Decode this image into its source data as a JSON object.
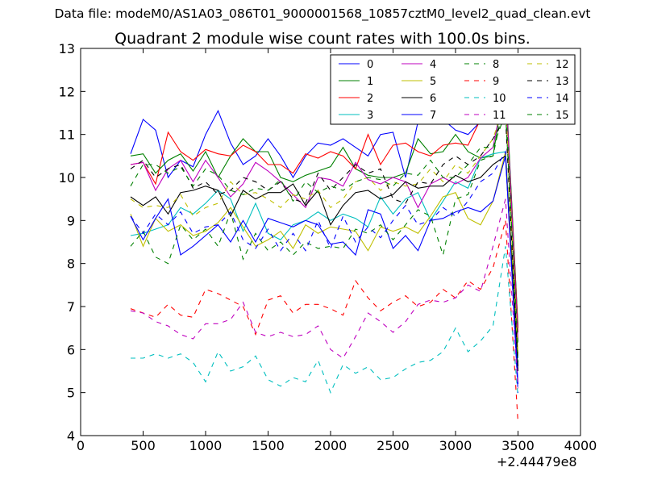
{
  "header": {
    "suptitle": "Data file: modeM0/AS1A03_086T01_9000001568_10857cztM0_level2_quad_clean.evt"
  },
  "chart_data": {
    "type": "line",
    "title": "Quadrant 2 module wise count rates with 100.0s bins.",
    "xlabel": "",
    "ylabel": "",
    "x_offset_label": "+2.44479e8",
    "xlim": [
      0,
      4000
    ],
    "ylim": [
      4,
      13
    ],
    "xticks": [
      0,
      500,
      1000,
      1500,
      2000,
      2500,
      3000,
      3500,
      4000
    ],
    "yticks": [
      4,
      5,
      6,
      7,
      8,
      9,
      10,
      11,
      12,
      13
    ],
    "legend_position": "top-right",
    "legend_columns": 4,
    "x": [
      400,
      500,
      600,
      700,
      800,
      900,
      1000,
      1100,
      1200,
      1300,
      1400,
      1500,
      1600,
      1700,
      1800,
      1900,
      2000,
      2100,
      2200,
      2300,
      2400,
      2500,
      2600,
      2700,
      2800,
      2900,
      3000,
      3100,
      3200,
      3300,
      3400,
      3500
    ],
    "series": [
      {
        "name": "0",
        "color": "#0000ff",
        "dash": "solid",
        "values": [
          10.55,
          11.35,
          11.1,
          10.0,
          10.4,
          10.25,
          11.0,
          11.55,
          10.8,
          10.3,
          10.5,
          10.9,
          10.5,
          10.0,
          10.5,
          10.8,
          10.75,
          10.9,
          10.7,
          10.5,
          11.0,
          11.05,
          10.0,
          11.3,
          11.45,
          11.35,
          11.1,
          11.0,
          11.3,
          11.5,
          12.2,
          6.5
        ]
      },
      {
        "name": "1",
        "color": "#008000",
        "dash": "solid",
        "values": [
          10.5,
          10.55,
          10.1,
          10.4,
          10.55,
          10.15,
          10.6,
          10.0,
          10.5,
          10.9,
          10.6,
          10.6,
          10.0,
          9.9,
          10.05,
          10.15,
          10.25,
          10.7,
          10.2,
          10.05,
          10.0,
          10.0,
          10.1,
          10.9,
          10.55,
          10.6,
          11.0,
          10.6,
          10.45,
          10.5,
          12.3,
          6.5
        ]
      },
      {
        "name": "2",
        "color": "#ff0000",
        "dash": "solid",
        "values": [
          10.3,
          10.35,
          9.85,
          11.05,
          10.6,
          10.4,
          10.65,
          10.55,
          10.5,
          10.75,
          10.6,
          10.3,
          10.3,
          10.1,
          10.55,
          10.45,
          10.6,
          10.5,
          10.2,
          11.0,
          10.3,
          10.75,
          10.8,
          10.6,
          10.5,
          10.75,
          10.8,
          10.75,
          11.35,
          11.8,
          12.1,
          6.4
        ]
      },
      {
        "name": "3",
        "color": "#00bfbf",
        "dash": "solid",
        "values": [
          8.65,
          8.7,
          8.8,
          8.9,
          9.3,
          9.15,
          9.4,
          9.7,
          9.5,
          8.75,
          9.4,
          8.7,
          8.55,
          8.9,
          9.0,
          9.2,
          9.0,
          9.15,
          9.05,
          8.85,
          9.55,
          9.15,
          9.5,
          9.65,
          9.0,
          9.45,
          9.9,
          9.75,
          10.45,
          10.55,
          10.6,
          5.8
        ]
      },
      {
        "name": "4",
        "color": "#bf00bf",
        "dash": "solid",
        "values": [
          10.3,
          10.35,
          9.7,
          10.2,
          10.4,
          9.9,
          10.4,
          10.0,
          9.55,
          9.85,
          10.35,
          10.15,
          9.9,
          9.6,
          9.3,
          10.0,
          9.95,
          9.8,
          10.35,
          9.95,
          9.85,
          10.0,
          9.9,
          9.3,
          9.85,
          10.0,
          9.85,
          10.0,
          10.45,
          10.7,
          12.2,
          6.2
        ]
      },
      {
        "name": "5",
        "color": "#bfbf00",
        "dash": "solid",
        "values": [
          9.15,
          8.4,
          9.05,
          8.75,
          8.9,
          8.65,
          8.75,
          8.95,
          9.3,
          8.85,
          8.4,
          8.55,
          8.75,
          8.35,
          8.9,
          8.7,
          8.85,
          8.8,
          8.75,
          8.3,
          8.85,
          8.75,
          8.85,
          8.7,
          9.1,
          9.55,
          9.65,
          9.05,
          8.9,
          9.45,
          10.6,
          5.9
        ]
      },
      {
        "name": "6",
        "color": "#000000",
        "dash": "solid",
        "values": [
          9.55,
          9.35,
          9.55,
          9.15,
          9.65,
          9.7,
          9.8,
          9.7,
          9.1,
          9.7,
          9.5,
          9.65,
          9.65,
          9.85,
          9.35,
          9.7,
          8.9,
          9.35,
          9.65,
          9.7,
          9.5,
          9.6,
          9.9,
          9.75,
          9.8,
          9.8,
          10.05,
          9.9,
          10.0,
          10.3,
          10.5,
          5.5
        ]
      },
      {
        "name": "7",
        "color": "#0000ff",
        "dash": "solid",
        "values": [
          9.1,
          8.55,
          9.05,
          9.5,
          8.2,
          8.4,
          8.65,
          8.9,
          8.5,
          9.0,
          8.5,
          9.05,
          8.95,
          8.85,
          9.0,
          8.9,
          8.45,
          8.5,
          8.2,
          9.25,
          9.15,
          8.35,
          8.65,
          8.3,
          9.0,
          9.05,
          9.2,
          9.3,
          9.2,
          9.45,
          10.5,
          5.2
        ]
      },
      {
        "name": "8",
        "color": "#008000",
        "dash": "dashed",
        "values": [
          8.4,
          8.75,
          8.15,
          8.0,
          8.9,
          8.55,
          8.8,
          8.4,
          9.2,
          8.1,
          8.7,
          8.3,
          8.5,
          8.2,
          8.5,
          8.35,
          8.4,
          8.35,
          8.8,
          8.7,
          8.9,
          8.55,
          8.9,
          9.25,
          9.1,
          8.2,
          9.5,
          9.6,
          10.4,
          10.5,
          11.9,
          5.7
        ]
      },
      {
        "name": "9",
        "color": "#ff0000",
        "dash": "dashed",
        "values": [
          6.95,
          6.85,
          6.75,
          7.05,
          6.8,
          6.75,
          7.4,
          7.3,
          7.15,
          7.0,
          6.35,
          7.15,
          7.25,
          6.85,
          7.05,
          7.05,
          6.95,
          6.8,
          7.6,
          7.2,
          6.9,
          7.1,
          7.25,
          7.0,
          7.1,
          7.4,
          7.2,
          7.6,
          7.4,
          7.9,
          9.0,
          4.3
        ]
      },
      {
        "name": "10",
        "color": "#00bfbf",
        "dash": "dashed",
        "values": [
          5.8,
          5.8,
          5.9,
          5.8,
          5.9,
          5.7,
          5.25,
          5.95,
          5.5,
          5.6,
          5.85,
          5.3,
          5.15,
          5.35,
          5.25,
          5.75,
          5.0,
          5.65,
          5.45,
          5.6,
          5.3,
          5.35,
          5.55,
          5.7,
          5.75,
          5.95,
          6.5,
          5.95,
          6.2,
          6.55,
          8.4,
          4.9
        ]
      },
      {
        "name": "11",
        "color": "#bf00bf",
        "dash": "dashed",
        "values": [
          6.9,
          6.85,
          6.65,
          6.55,
          6.35,
          6.25,
          6.6,
          6.6,
          6.7,
          7.1,
          6.4,
          6.3,
          6.4,
          6.3,
          6.35,
          6.55,
          6.0,
          5.8,
          6.3,
          6.85,
          6.65,
          6.4,
          6.65,
          7.05,
          7.15,
          7.1,
          7.2,
          7.5,
          7.35,
          8.4,
          9.5,
          5.1
        ]
      },
      {
        "name": "12",
        "color": "#bfbf00",
        "dash": "dashed",
        "values": [
          9.5,
          9.3,
          9.35,
          9.3,
          9.6,
          9.1,
          9.3,
          9.4,
          9.9,
          9.6,
          9.65,
          9.5,
          9.3,
          9.6,
          9.5,
          9.7,
          9.3,
          9.5,
          9.9,
          10.0,
          9.7,
          9.9,
          9.8,
          9.85,
          10.2,
          9.9,
          10.3,
          10.1,
          10.5,
          10.9,
          11.8,
          5.9
        ]
      },
      {
        "name": "13",
        "color": "#000000",
        "dash": "dashed",
        "values": [
          10.2,
          10.4,
          10.0,
          10.2,
          10.3,
          9.75,
          9.9,
          9.6,
          9.7,
          10.0,
          9.9,
          9.7,
          9.9,
          9.5,
          9.4,
          10.1,
          9.7,
          10.0,
          10.3,
          10.1,
          10.2,
          9.5,
          9.4,
          9.9,
          9.85,
          10.3,
          10.5,
          10.3,
          10.5,
          10.9,
          11.4,
          5.6
        ]
      },
      {
        "name": "14",
        "color": "#0000ff",
        "dash": "dashed",
        "values": [
          9.1,
          8.7,
          9.15,
          8.9,
          9.2,
          8.7,
          8.85,
          8.9,
          9.2,
          8.55,
          8.35,
          8.8,
          8.3,
          8.7,
          8.3,
          9.0,
          8.35,
          9.1,
          8.5,
          8.85,
          8.6,
          9.0,
          9.35,
          8.9,
          9.0,
          9.3,
          9.1,
          9.45,
          9.9,
          10.1,
          10.6,
          5.0
        ]
      },
      {
        "name": "15",
        "color": "#008000",
        "dash": "dashed",
        "values": [
          9.8,
          10.3,
          10.3,
          10.1,
          10.25,
          9.8,
          10.2,
          10.05,
          9.7,
          9.6,
          9.75,
          9.7,
          9.95,
          9.45,
          9.9,
          9.65,
          9.8,
          9.7,
          9.9,
          10.0,
          9.95,
          9.8,
          10.1,
          10.05,
          10.4,
          10.0,
          10.0,
          10.3,
          10.7,
          10.7,
          11.5,
          6.1
        ]
      }
    ]
  }
}
